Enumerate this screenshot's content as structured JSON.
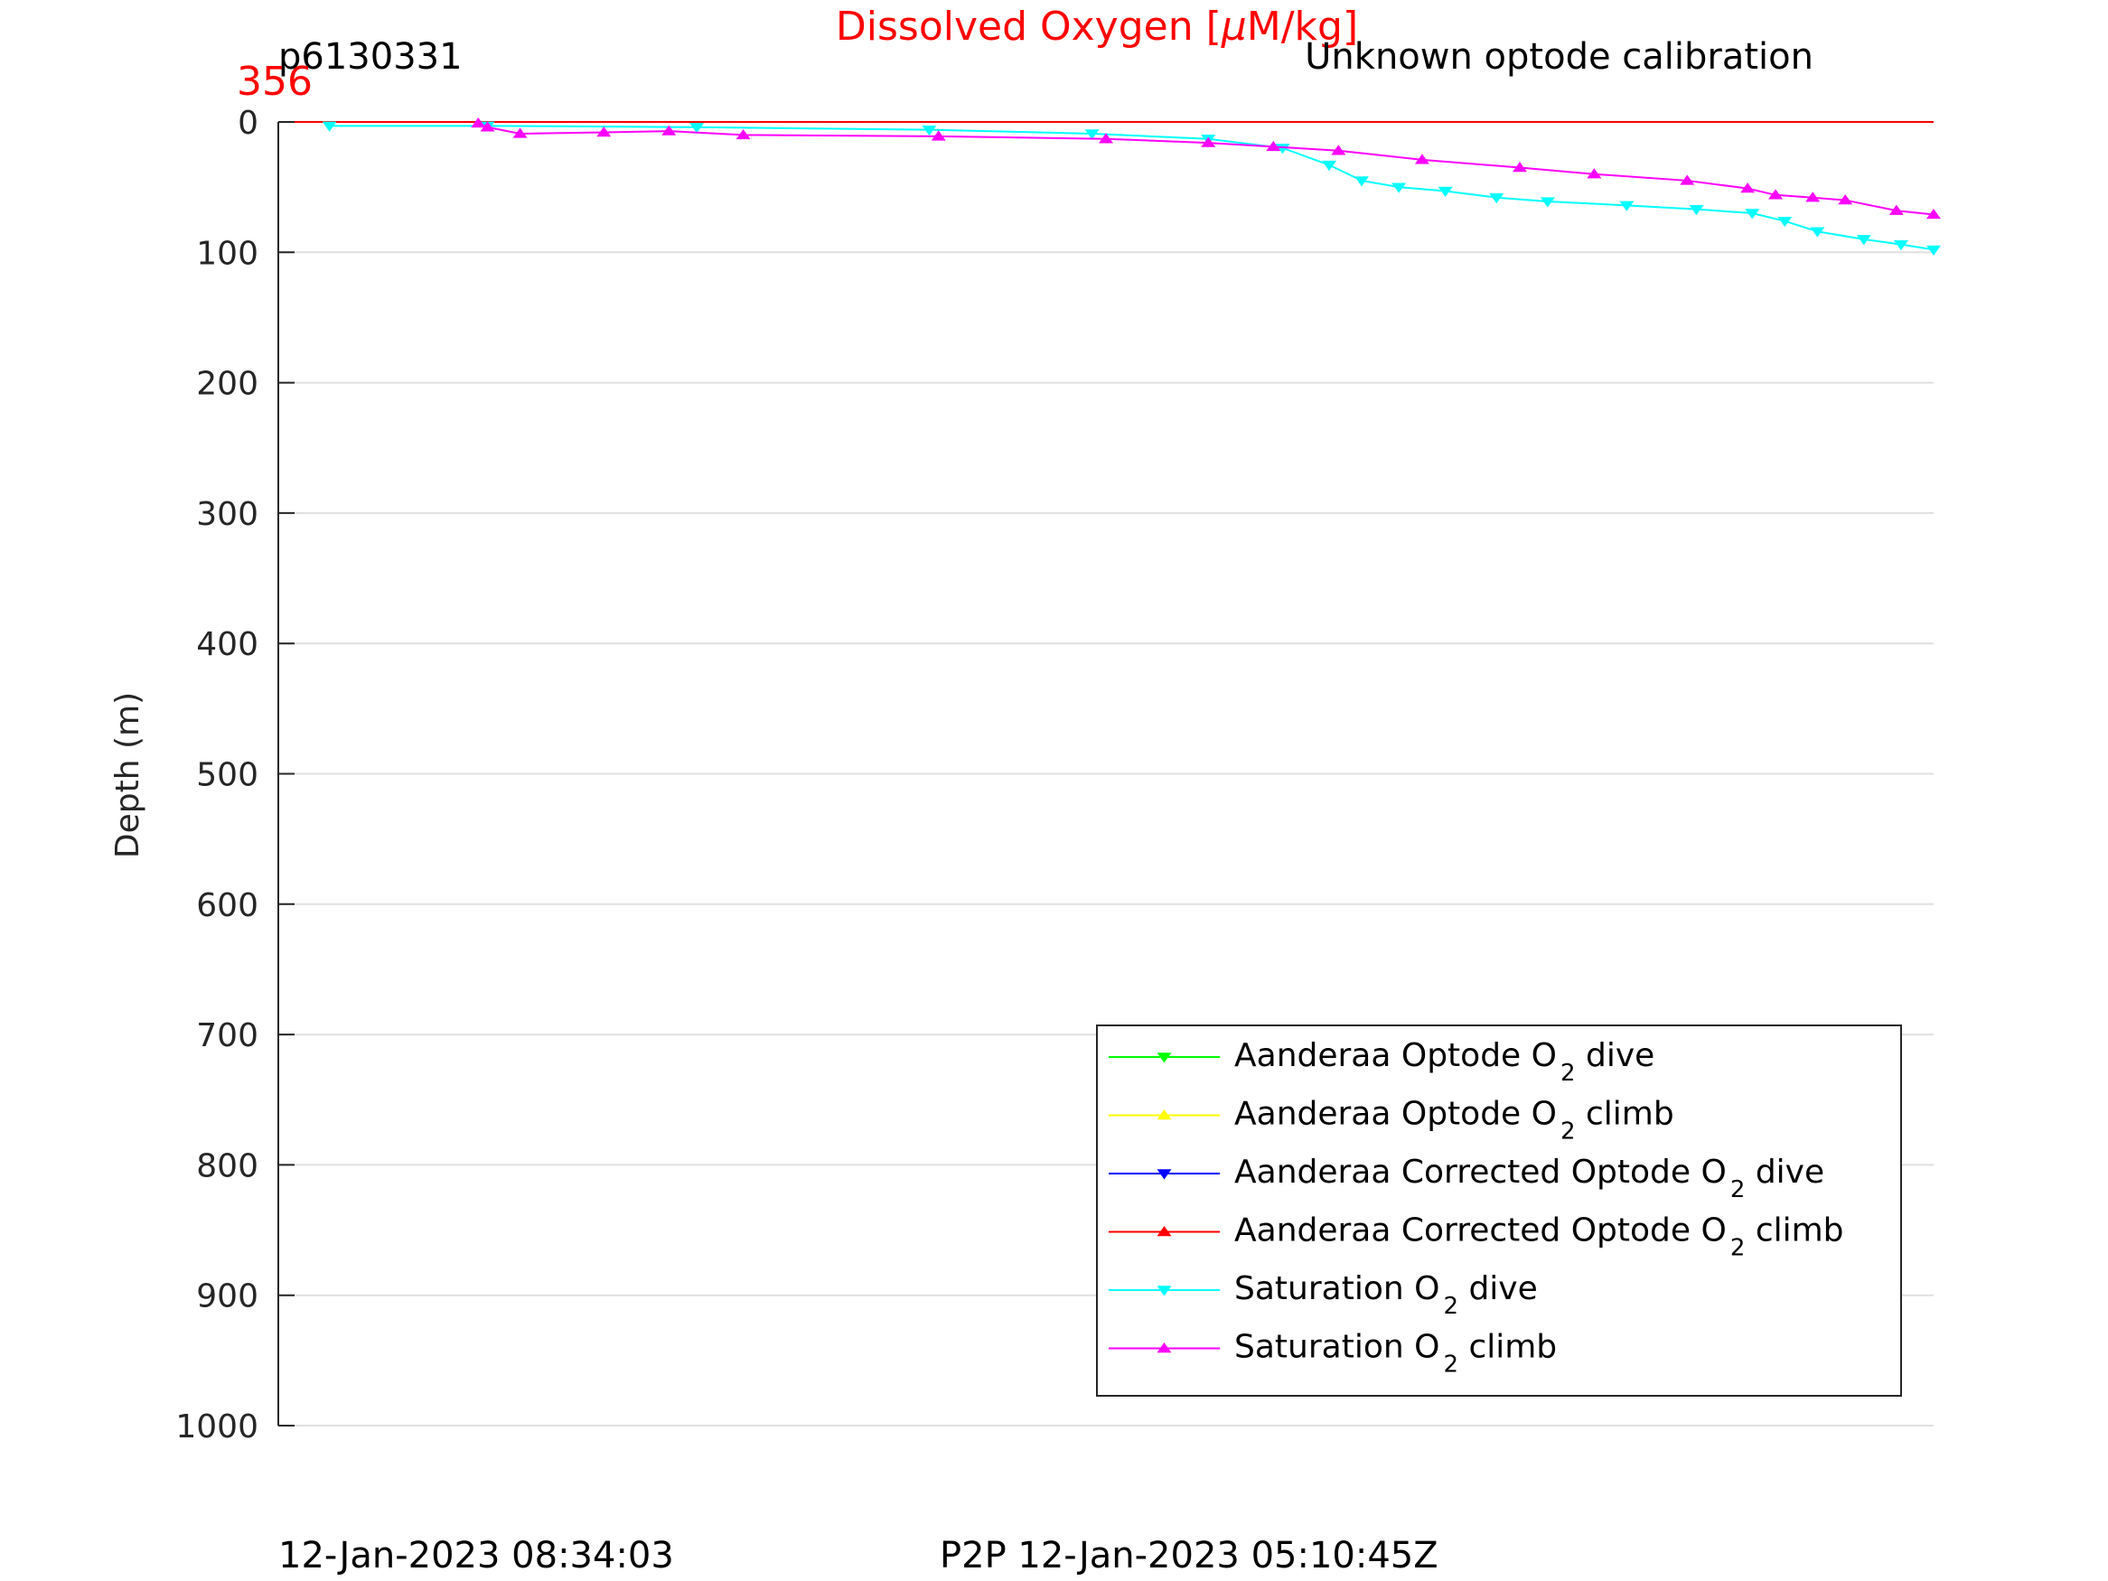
{
  "header": {
    "title_main": "Dissolved Oxygen [",
    "title_mu": "μ",
    "title_rest": "M/kg]",
    "glider_id": "p6130331",
    "calibration_note": "Unknown optode calibration",
    "max_value_label": "356",
    "footer_left": "12-Jan-2023 08:34:03",
    "footer_right": "P2P 12-Jan-2023 05:10:45Z"
  },
  "colors": {
    "title": "#ff0000",
    "grid": "#e0e0e0",
    "axis": "#262626",
    "red_line": "#ff0000"
  },
  "chart_data": {
    "type": "line",
    "ylabel": "Depth (m)",
    "ylim": [
      0,
      1000
    ],
    "y_reversed": true,
    "xlim": [
      0,
      356
    ],
    "yticks": [
      0,
      100,
      200,
      300,
      400,
      500,
      600,
      700,
      800,
      900,
      1000
    ],
    "ytick_labels": [
      "0",
      "100",
      "200",
      "300",
      "400",
      "500",
      "600",
      "700",
      "800",
      "900",
      "1000"
    ],
    "grid": true,
    "legend_position": "bottom-right",
    "series": [
      {
        "name": "Aanderaa Optode O",
        "sub": "2",
        "suffix": " dive",
        "color": "#00ff00",
        "marker": "down",
        "x": [],
        "y": []
      },
      {
        "name": "Aanderaa Optode O",
        "sub": "2",
        "suffix": " climb",
        "color": "#ffff00",
        "marker": "up",
        "x": [],
        "y": []
      },
      {
        "name": "Aanderaa Corrected Optode O",
        "sub": "2",
        "suffix": " dive",
        "color": "#0000ff",
        "marker": "down",
        "x": [],
        "y": []
      },
      {
        "name": "Aanderaa Corrected Optode O",
        "sub": "2",
        "suffix": " climb",
        "color": "#ff0000",
        "marker": "up",
        "x": [
          356,
          0
        ],
        "y": [
          0,
          0
        ]
      },
      {
        "name": "Saturation O",
        "sub": "2",
        "suffix": " dive",
        "color": "#00ffff",
        "marker": "down",
        "x": [
          11,
          45,
          90,
          140,
          175,
          200,
          216,
          226,
          233,
          241,
          251,
          262,
          273,
          290,
          305,
          317,
          324,
          331,
          341,
          349,
          356
        ],
        "y": [
          3,
          3,
          4,
          6,
          9,
          13,
          20,
          33,
          45,
          50,
          53,
          58,
          61,
          64,
          67,
          70,
          76,
          84,
          90,
          94,
          98
        ]
      },
      {
        "name": "Saturation O",
        "sub": "2",
        "suffix": " climb",
        "color": "#ff00ff",
        "marker": "up",
        "x": [
          43,
          45,
          52,
          70,
          84,
          100,
          142,
          178,
          200,
          214,
          228,
          246,
          267,
          283,
          303,
          316,
          322,
          330,
          337,
          348,
          356
        ],
        "y": [
          1,
          4,
          9,
          8,
          7,
          10,
          11,
          13,
          16,
          19,
          22,
          29,
          35,
          40,
          45,
          51,
          56,
          58,
          60,
          68,
          71
        ]
      }
    ]
  }
}
